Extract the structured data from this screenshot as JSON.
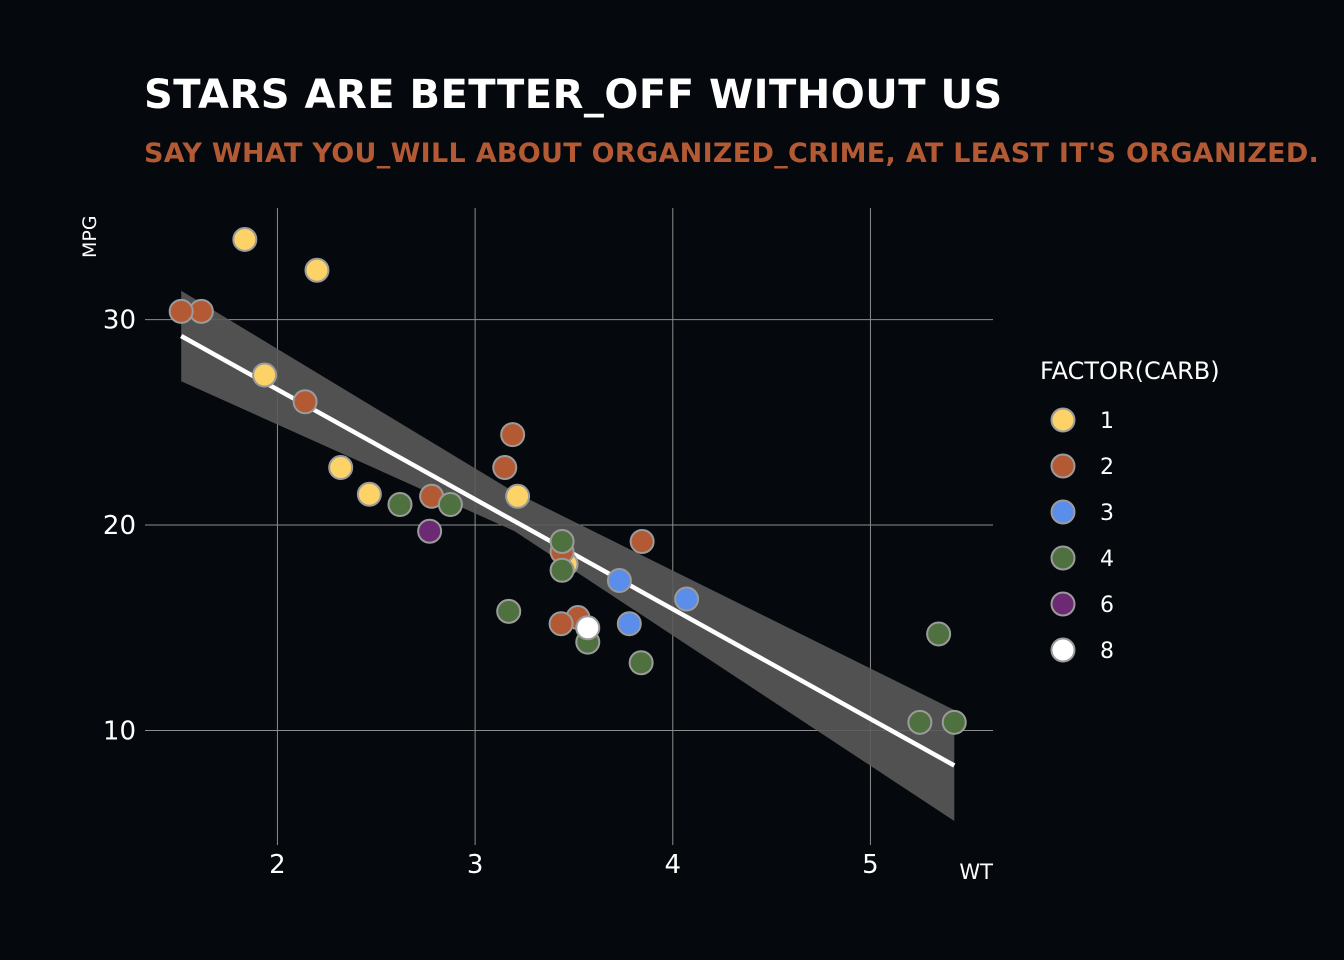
{
  "chart_data": {
    "type": "scatter",
    "title": "STARS ARE BETTER_OFF WITHOUT US",
    "subtitle": "SAY WHAT YOU_WILL ABOUT ORGANIZED_CRIME, AT LEAST IT'S ORGANIZED.",
    "xlabel": "WT",
    "ylabel": "MPG",
    "xlim": [
      1.33,
      5.62
    ],
    "ylim": [
      4.43,
      35.43
    ],
    "x_ticks": [
      2,
      3,
      4,
      5
    ],
    "y_ticks": [
      10,
      20,
      30
    ],
    "x_tick_labels": [
      "2",
      "3",
      "4",
      "5"
    ],
    "y_tick_labels": [
      "10",
      "20",
      "30"
    ],
    "grid": true,
    "legend": {
      "title": "FACTOR(CARB)",
      "placement": "right",
      "entries": [
        {
          "label": "1",
          "color": "#fdd267"
        },
        {
          "label": "2",
          "color": "#b35a34"
        },
        {
          "label": "3",
          "color": "#5b8dea"
        },
        {
          "label": "4",
          "color": "#4f7140"
        },
        {
          "label": "6",
          "color": "#6b2a73"
        },
        {
          "label": "8",
          "color": "#ffffff"
        }
      ]
    },
    "point_outline_color": "#9b9b9b",
    "series": [
      {
        "name": "1",
        "color": "#fdd267",
        "points": [
          {
            "x": 2.32,
            "y": 22.8
          },
          {
            "x": 3.215,
            "y": 21.4
          },
          {
            "x": 3.46,
            "y": 18.1
          },
          {
            "x": 2.2,
            "y": 32.4
          },
          {
            "x": 1.835,
            "y": 33.9
          },
          {
            "x": 2.465,
            "y": 21.5
          },
          {
            "x": 1.935,
            "y": 27.3
          }
        ]
      },
      {
        "name": "2",
        "color": "#b35a34",
        "points": [
          {
            "x": 3.44,
            "y": 18.7
          },
          {
            "x": 3.19,
            "y": 24.4
          },
          {
            "x": 3.15,
            "y": 22.8
          },
          {
            "x": 1.615,
            "y": 30.4
          },
          {
            "x": 3.52,
            "y": 15.5
          },
          {
            "x": 3.435,
            "y": 15.2
          },
          {
            "x": 3.845,
            "y": 19.2
          },
          {
            "x": 2.14,
            "y": 26.0
          },
          {
            "x": 1.513,
            "y": 30.4
          },
          {
            "x": 2.78,
            "y": 21.4
          }
        ]
      },
      {
        "name": "3",
        "color": "#5b8dea",
        "points": [
          {
            "x": 4.07,
            "y": 16.4
          },
          {
            "x": 3.73,
            "y": 17.3
          },
          {
            "x": 3.78,
            "y": 15.2
          }
        ]
      },
      {
        "name": "4",
        "color": "#4f7140",
        "points": [
          {
            "x": 2.62,
            "y": 21.0
          },
          {
            "x": 2.875,
            "y": 21.0
          },
          {
            "x": 3.57,
            "y": 14.3
          },
          {
            "x": 3.44,
            "y": 19.2
          },
          {
            "x": 3.44,
            "y": 17.8
          },
          {
            "x": 5.25,
            "y": 10.4
          },
          {
            "x": 5.424,
            "y": 10.4
          },
          {
            "x": 5.345,
            "y": 14.7
          },
          {
            "x": 3.84,
            "y": 13.3
          },
          {
            "x": 3.17,
            "y": 15.8
          }
        ]
      },
      {
        "name": "6",
        "color": "#6b2a73",
        "points": [
          {
            "x": 2.77,
            "y": 19.7
          }
        ]
      },
      {
        "name": "8",
        "color": "#ffffff",
        "points": [
          {
            "x": 3.57,
            "y": 15.0
          }
        ]
      }
    ],
    "fit_line": {
      "type": "linear",
      "color": "#ffffff",
      "x_range": [
        1.513,
        5.424
      ],
      "intercept": 37.285,
      "slope": -5.344,
      "band_color": "#5a5a5a",
      "band": [
        {
          "x": 1.513,
          "lower": 27.0,
          "upper": 31.4
        },
        {
          "x": 3.2,
          "lower": 19.7,
          "upper": 21.6
        },
        {
          "x": 5.424,
          "lower": 5.6,
          "upper": 11.0
        }
      ]
    }
  }
}
